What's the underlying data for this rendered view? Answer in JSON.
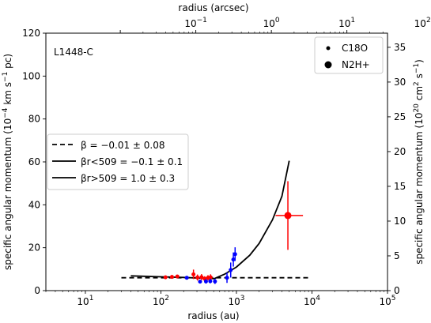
{
  "chart_data": {
    "type": "scatter",
    "panel_label": "L1448-C",
    "xlabel": "radius (au)",
    "x_scale": "log",
    "xlim": [
      3,
      100000
    ],
    "x_ticks": [
      10,
      100,
      1000,
      10000,
      100000
    ],
    "x_tick_labels": [
      {
        "base": "10",
        "exp": "1"
      },
      {
        "base": "10",
        "exp": "2"
      },
      {
        "base": "10",
        "exp": "3"
      },
      {
        "base": "10",
        "exp": "4"
      },
      {
        "base": "10",
        "exp": "5"
      }
    ],
    "top_xlabel": "radius (arcsec)",
    "top_x_ticks": [
      0.1,
      1,
      10,
      100
    ],
    "top_x_tick_labels": [
      {
        "base": "10",
        "exp": "−1"
      },
      {
        "base": "10",
        "exp": "0"
      },
      {
        "base": "10",
        "exp": "1"
      },
      {
        "base": "10",
        "exp": "2"
      }
    ],
    "ylabel": {
      "pre": "specific angular momentum (10",
      "sup1": "−4",
      "mid": " km s",
      "sup2": "−1",
      "post": " pc)"
    },
    "ylim": [
      0,
      120
    ],
    "y_ticks": [
      0,
      20,
      40,
      60,
      80,
      100,
      120
    ],
    "y_tick_labels": [
      "0",
      "20",
      "40",
      "60",
      "80",
      "100",
      "120"
    ],
    "right_ylabel": {
      "pre": "specific angular momentum (10",
      "sup1": "20",
      "mid": " cm",
      "sup2": "2",
      "mid2": " s",
      "sup3": "−1",
      "post": ")"
    },
    "right_y_ticks": [
      0,
      5,
      10,
      15,
      20,
      25,
      30,
      35
    ],
    "right_y_tick_labels": [
      "0",
      "5",
      "10",
      "15",
      "20",
      "25",
      "30",
      "35"
    ],
    "grid": false,
    "legend_markers": {
      "placement": "top-right",
      "entries": [
        {
          "label": "C18O",
          "marker": "small-dot"
        },
        {
          "label": "N2H+",
          "marker": "large-dot"
        }
      ]
    },
    "legend_lines": {
      "placement": "center-left",
      "entries": [
        {
          "label": "β = −0.01 ± 0.08",
          "style": "dashed"
        },
        {
          "label": "βr<509 = −0.1 ± 0.1",
          "style": "solid"
        },
        {
          "label": "βr>509 = 1.0 ± 0.3",
          "style": "solid"
        }
      ]
    },
    "colors": {
      "red": "#ff0000",
      "blue": "#0000ff",
      "line": "#000000"
    },
    "series": [
      {
        "color": "red",
        "marker": "small-dot",
        "points": [
          {
            "x": 115,
            "y": 6.2,
            "yerr": 0.8
          },
          {
            "x": 140,
            "y": 6.4,
            "yerr": 0.8
          },
          {
            "x": 165,
            "y": 6.6,
            "yerr": 0.8
          },
          {
            "x": 270,
            "y": 7.6,
            "yerr": 2.2
          },
          {
            "x": 305,
            "y": 6.1,
            "yerr": 1.4
          },
          {
            "x": 345,
            "y": 6.3,
            "yerr": 1.4
          },
          {
            "x": 380,
            "y": 5.5,
            "yerr": 1.2
          },
          {
            "x": 420,
            "y": 6.0,
            "yerr": 1.2
          },
          {
            "x": 455,
            "y": 6.2,
            "yerr": 1.4
          }
        ]
      },
      {
        "color": "blue",
        "marker": "small-dot",
        "points": [
          {
            "x": 220,
            "y": 6.0,
            "yerr": 0.8
          },
          {
            "x": 330,
            "y": 4.2,
            "yerr": 0.8
          },
          {
            "x": 395,
            "y": 4.3,
            "yerr": 1.0
          },
          {
            "x": 450,
            "y": 4.4,
            "yerr": 1.0
          },
          {
            "x": 520,
            "y": 4.3,
            "yerr": 1.2
          },
          {
            "x": 750,
            "y": 6.0,
            "yerr": 2.4
          },
          {
            "x": 840,
            "y": 9.6,
            "yerr": 3.5
          },
          {
            "x": 910,
            "y": 14.5,
            "yerr": 3.3
          },
          {
            "x": 960,
            "y": 17.0,
            "yerr": 3.2
          }
        ]
      },
      {
        "color": "red",
        "marker": "large-dot",
        "points": [
          {
            "x": 4800,
            "y": 35.0,
            "yerr": 16.0,
            "xerr_low": 3300,
            "xerr_high": 7600
          }
        ]
      }
    ],
    "fit_lines": [
      {
        "style": "dashed",
        "x": [
          30,
          9000
        ],
        "y": [
          6.0,
          6.0
        ]
      },
      {
        "style": "solid",
        "x": [
          40,
          100,
          200,
          300,
          400,
          509
        ],
        "y": [
          6.9,
          6.45,
          6.15,
          5.9,
          5.7,
          5.6
        ]
      },
      {
        "style": "solid",
        "x": [
          509,
          700,
          1000,
          1500,
          2000,
          3000,
          4000,
          5000
        ],
        "y": [
          5.6,
          7.7,
          11.0,
          16.5,
          22.0,
          33.0,
          44.0,
          60.5
        ]
      }
    ]
  }
}
